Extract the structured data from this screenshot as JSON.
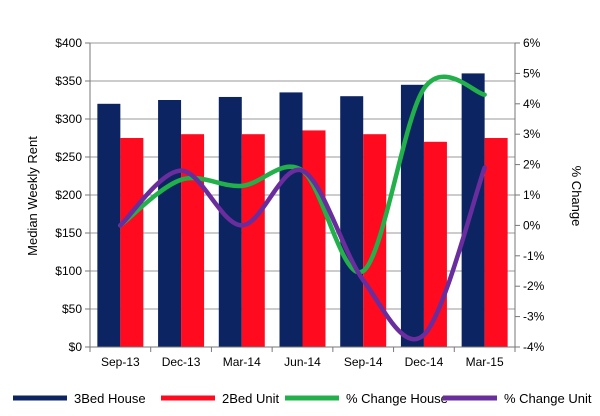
{
  "chart_data": {
    "type": "bar",
    "categories": [
      "Sep-13",
      "Dec-13",
      "Mar-14",
      "Jun-14",
      "Sep-14",
      "Dec-14",
      "Mar-15"
    ],
    "series": [
      {
        "name": "3Bed House",
        "type": "bar",
        "axis": "left",
        "color": "#0c2461",
        "values": [
          320,
          325,
          329,
          335,
          330,
          345,
          360
        ]
      },
      {
        "name": "2Bed Unit",
        "type": "bar",
        "axis": "left",
        "color": "#ff0a1e",
        "values": [
          275,
          280,
          280,
          285,
          280,
          270,
          275
        ]
      },
      {
        "name": "% Change House",
        "type": "line",
        "axis": "right",
        "color": "#22b04b",
        "values": [
          0.0,
          1.5,
          1.3,
          1.8,
          -1.5,
          4.5,
          4.3
        ]
      },
      {
        "name": "% Change Unit",
        "type": "line",
        "axis": "right",
        "color": "#6a2d9e",
        "values": [
          0.0,
          1.8,
          0.0,
          1.8,
          -1.8,
          -3.6,
          1.9
        ]
      }
    ],
    "ylabel": "Median Weekly Rent",
    "y2label": "% Change",
    "ylim": [
      0,
      400
    ],
    "y2lim": [
      -4,
      6
    ],
    "yticks": [
      "$0",
      "$50",
      "$100",
      "$150",
      "$200",
      "$250",
      "$300",
      "$350",
      "$400"
    ],
    "y2ticks": [
      "-4%",
      "-3%",
      "-2%",
      "-1%",
      "0%",
      "1%",
      "2%",
      "3%",
      "4%",
      "5%",
      "6%"
    ],
    "grid": true,
    "legend": "bottom"
  }
}
